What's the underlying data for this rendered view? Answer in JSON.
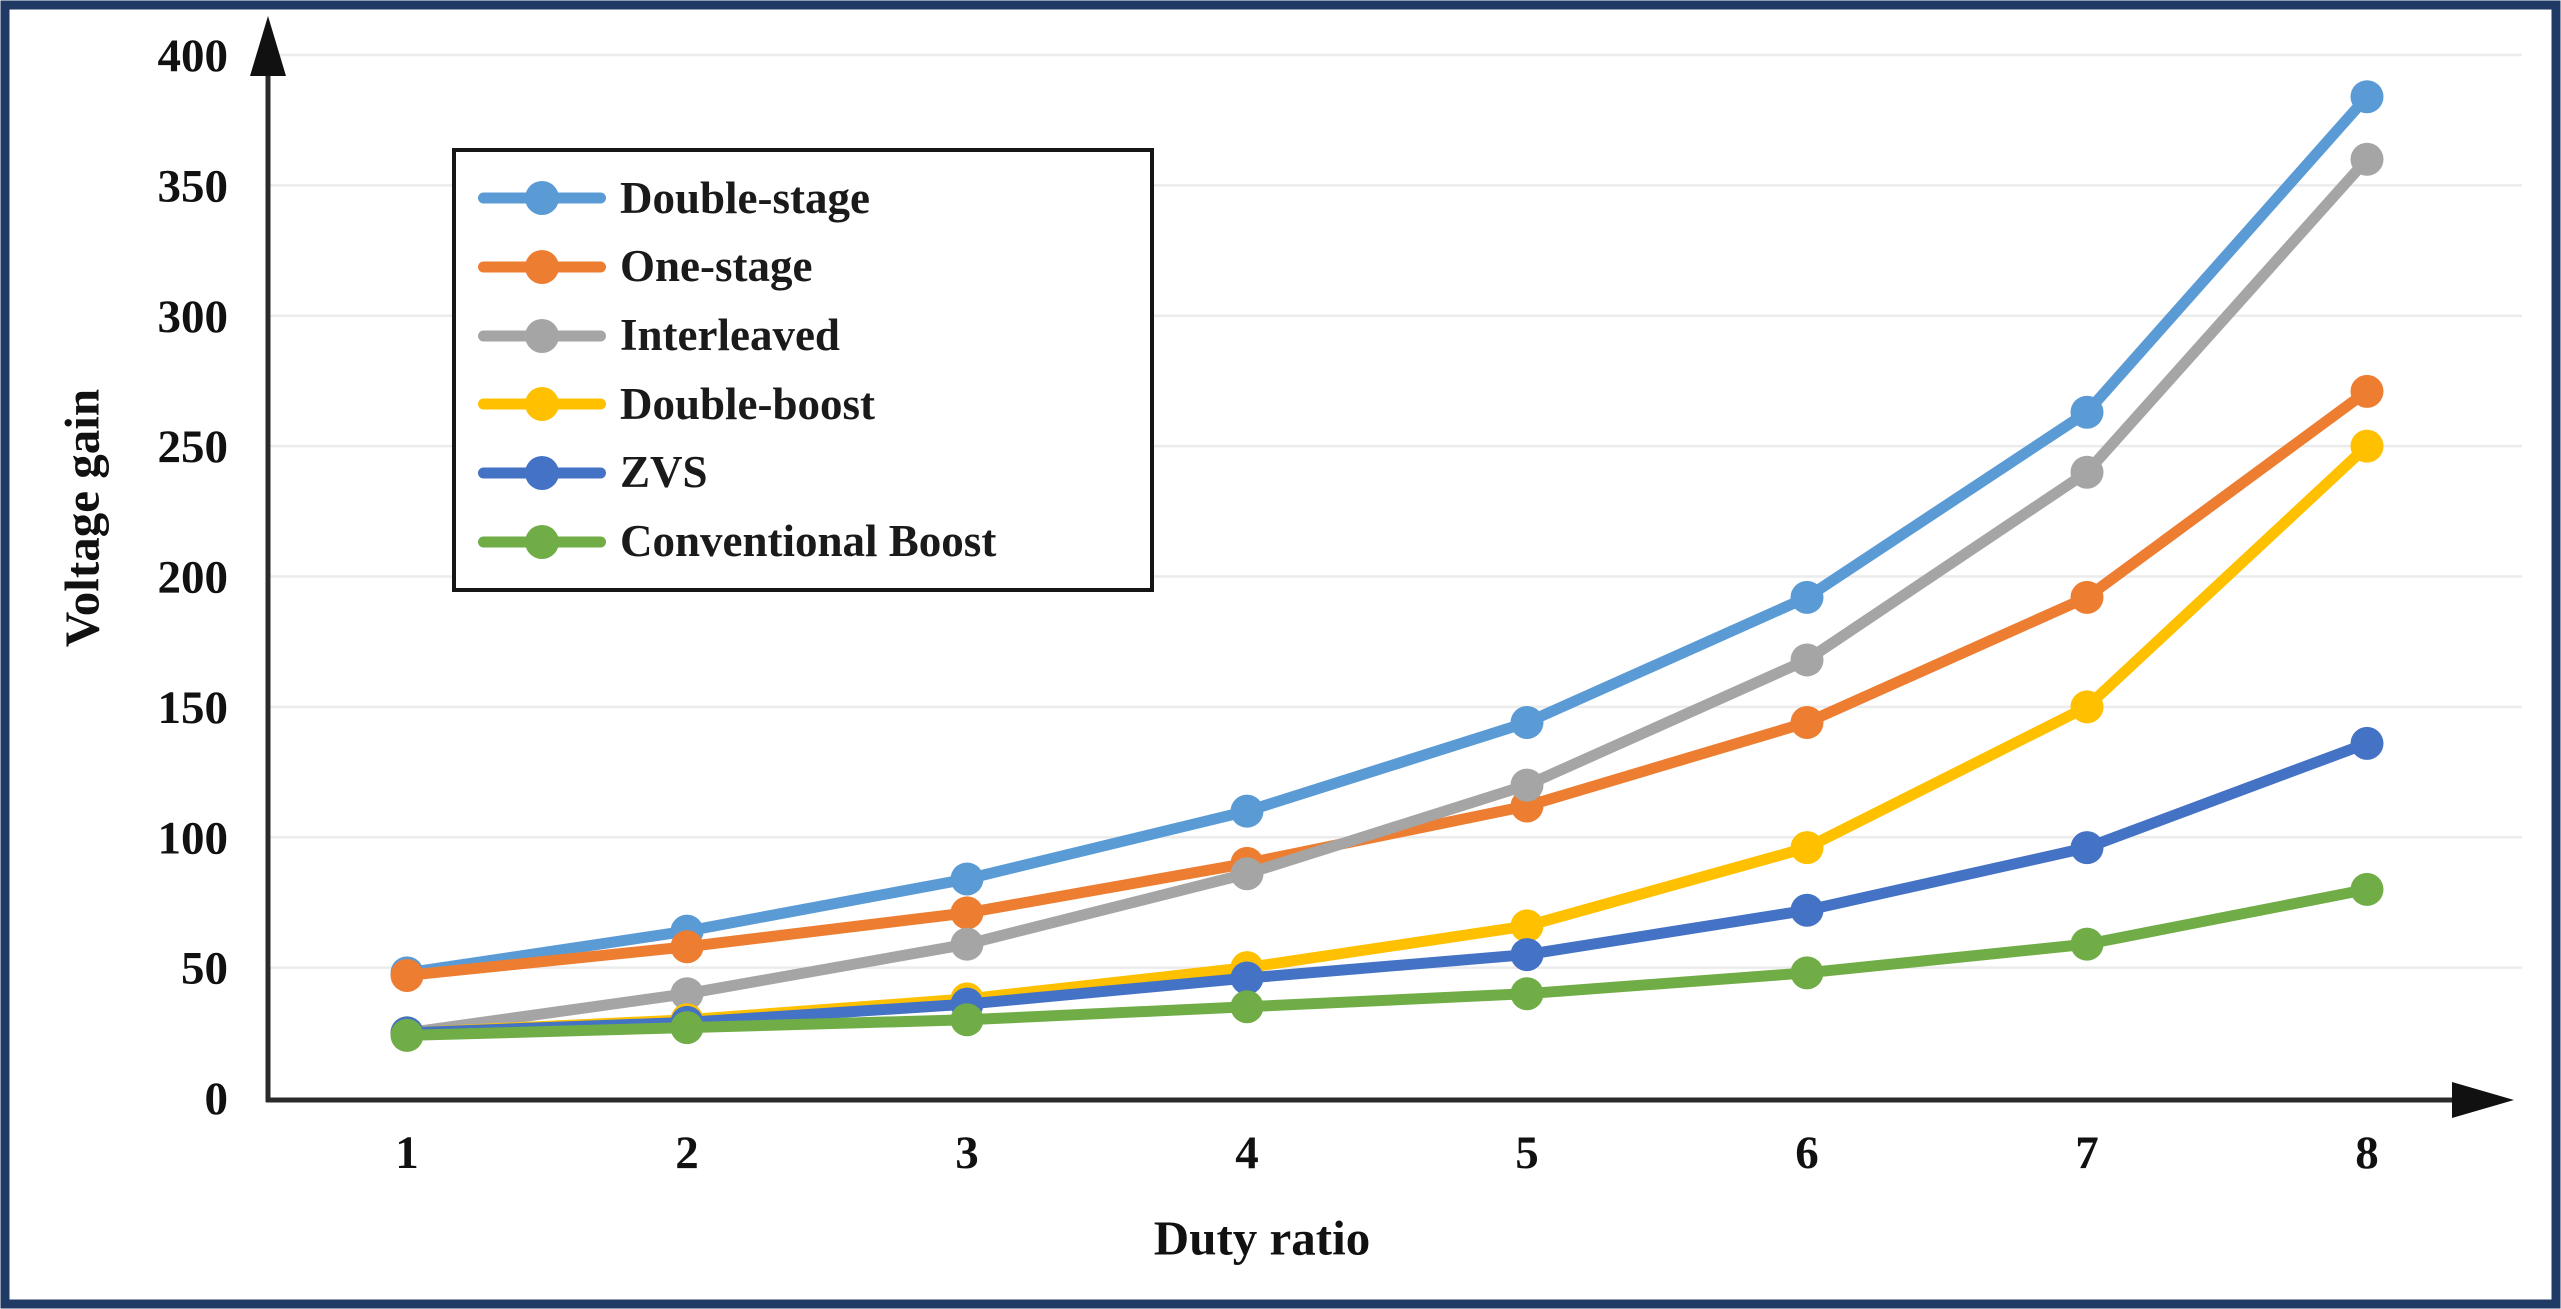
{
  "chart_data": {
    "type": "line",
    "title": "",
    "xlabel": "Duty ratio",
    "ylabel": "Voltage gain",
    "x": [
      1,
      2,
      3,
      4,
      5,
      6,
      7,
      8
    ],
    "xticks": [
      "1",
      "2",
      "3",
      "4",
      "5",
      "6",
      "7",
      "8"
    ],
    "yticks": [
      0,
      50,
      100,
      150,
      200,
      250,
      300,
      350,
      400
    ],
    "ylim": [
      0,
      400
    ],
    "xlim": [
      1,
      8
    ],
    "grid": "horizontal",
    "legend_position": "upper-left-inside",
    "series": [
      {
        "name": "Double-stage",
        "color": "#5B9BD5",
        "values": [
          48,
          64,
          84,
          110,
          144,
          192,
          263,
          384
        ]
      },
      {
        "name": "One-stage",
        "color": "#ED7D31",
        "values": [
          47,
          58,
          71,
          90,
          112,
          144,
          192,
          271
        ]
      },
      {
        "name": "Interleaved",
        "color": "#A5A5A5",
        "values": [
          25,
          40,
          59,
          86,
          120,
          168,
          240,
          360
        ]
      },
      {
        "name": "Double-boost",
        "color": "#FFC000",
        "values": [
          25,
          30,
          38,
          50,
          66,
          96,
          150,
          250
        ]
      },
      {
        "name": "ZVS",
        "color": "#4472C4",
        "values": [
          25,
          29,
          36,
          46,
          55,
          72,
          96,
          136
        ]
      },
      {
        "name": "Conventional Boost",
        "color": "#70AD47",
        "values": [
          24,
          27,
          30,
          35,
          40,
          48,
          59,
          80
        ]
      }
    ],
    "frame_color": "#1F3A64",
    "axis_color": "#2B2B2B",
    "gridline_color": "#ECECEC"
  }
}
